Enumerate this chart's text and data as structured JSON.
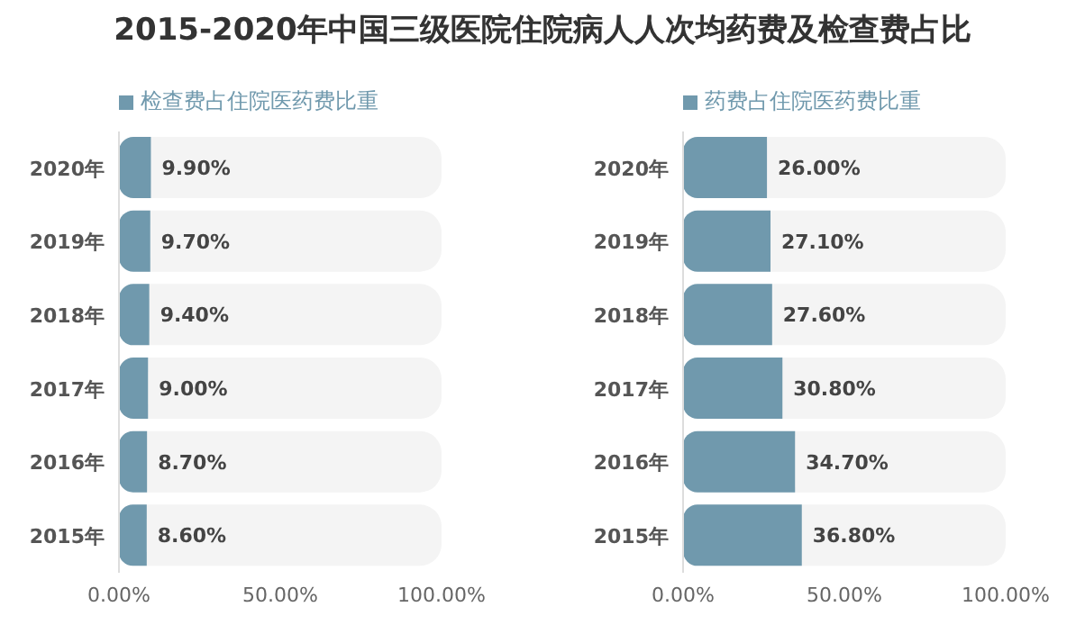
{
  "chart_data": [
    {
      "type": "bar",
      "orientation": "horizontal",
      "title": "2015-2020年中国三级医院住院病人人次均药费及检查费占比",
      "categories": [
        "2020年",
        "2019年",
        "2018年",
        "2017年",
        "2016年",
        "2015年"
      ],
      "series": [
        {
          "name": "检查费占住院医药费比重",
          "color": "#7099ad",
          "values": [
            9.9,
            9.7,
            9.4,
            9.0,
            8.7,
            8.6
          ],
          "value_labels": [
            "9.90%",
            "9.70%",
            "9.40%",
            "9.00%",
            "8.70%",
            "8.60%"
          ]
        }
      ],
      "xlim": [
        0,
        100
      ],
      "xticks": [
        {
          "value": 0,
          "label": "0.00%"
        },
        {
          "value": 50,
          "label": "50.00%"
        },
        {
          "value": 100,
          "label": "100.00%"
        }
      ],
      "legend": "top left",
      "grid": false
    },
    {
      "type": "bar",
      "orientation": "horizontal",
      "categories": [
        "2020年",
        "2019年",
        "2018年",
        "2017年",
        "2016年",
        "2015年"
      ],
      "series": [
        {
          "name": "药费占住院医药费比重",
          "color": "#7099ad",
          "values": [
            26.0,
            27.1,
            27.6,
            30.8,
            34.7,
            36.8
          ],
          "value_labels": [
            "26.00%",
            "27.10%",
            "27.60%",
            "30.80%",
            "34.70%",
            "36.80%"
          ]
        }
      ],
      "xlim": [
        0,
        100
      ],
      "xticks": [
        {
          "value": 0,
          "label": "0.00%"
        },
        {
          "value": 50,
          "label": "50.00%"
        },
        {
          "value": 100,
          "label": "100.00%"
        }
      ],
      "legend": "top left",
      "grid": false
    }
  ]
}
